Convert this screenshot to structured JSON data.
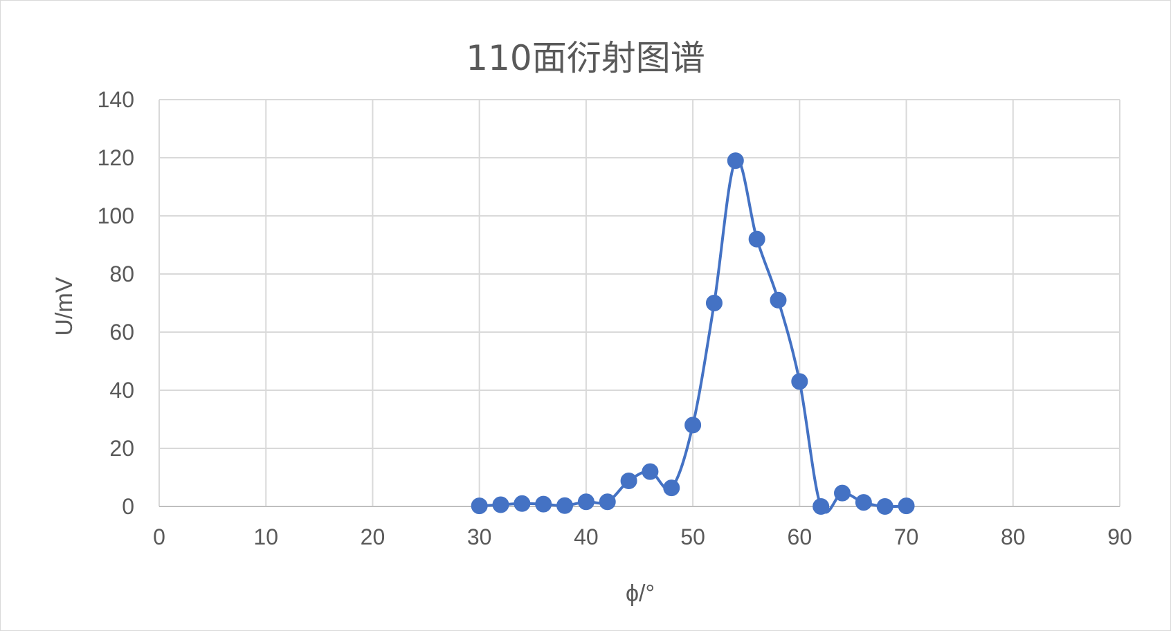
{
  "chart_data": {
    "type": "scatter",
    "title": "110面衍射图谱",
    "xlabel": "ϕ/°",
    "ylabel": "U/mV",
    "xlim": [
      0,
      90
    ],
    "ylim": [
      0,
      140
    ],
    "xticks": [
      0,
      10,
      20,
      30,
      40,
      50,
      60,
      70,
      80,
      90
    ],
    "yticks": [
      0,
      20,
      40,
      60,
      80,
      100,
      120,
      140
    ],
    "grid": true,
    "smooth_line": true,
    "series_color": "#4472c4",
    "series": [
      {
        "x": [
          30,
          32,
          34,
          36,
          38,
          40,
          42,
          44,
          46,
          48,
          50,
          52,
          54,
          56,
          58,
          60,
          62,
          64,
          66,
          68,
          70
        ],
        "y": [
          0.2,
          0.6,
          1.0,
          0.8,
          0.3,
          1.6,
          1.6,
          8.8,
          12.0,
          6.4,
          28,
          70,
          119,
          92,
          71,
          43,
          0,
          4.6,
          1.4,
          0,
          0.2
        ]
      }
    ]
  }
}
